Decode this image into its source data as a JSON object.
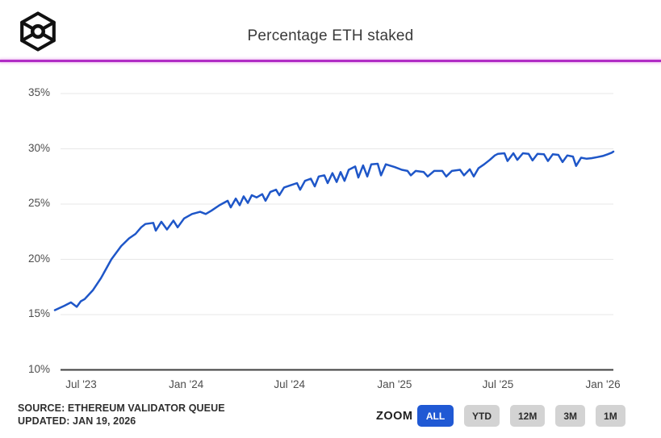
{
  "header": {
    "title": "Percentage ETH staked",
    "logo_icon": "cube-circle-logo",
    "accent_color": "#b02cc5"
  },
  "footer": {
    "source_line1": "SOURCE: ETHEREUM VALIDATOR QUEUE",
    "source_line2": "UPDATED: JAN 19, 2026",
    "zoom_label": "ZOOM",
    "active_color": "#2059d4",
    "inactive_color": "#d3d3d3",
    "zoom_buttons": [
      {
        "label": "ALL",
        "active": true
      },
      {
        "label": "YTD",
        "active": false
      },
      {
        "label": "12M",
        "active": false
      },
      {
        "label": "3M",
        "active": false
      },
      {
        "label": "1M",
        "active": false
      }
    ]
  },
  "chart_data": {
    "type": "line",
    "title": "Percentage ETH staked",
    "series_name": "Percentage ETH staked",
    "line_color": "#1e56c8",
    "grid": true,
    "ylim": [
      10,
      35
    ],
    "xlim": [
      2023.37,
      2026.05
    ],
    "ytick_labels": [
      "35%",
      "30%",
      "25%",
      "20%",
      "15%",
      "10%"
    ],
    "ytick_values": [
      35,
      30,
      25,
      20,
      15,
      10
    ],
    "xtick_labels": [
      "Jul '23",
      "Jan '24",
      "Jul '24",
      "Jan '25",
      "Jul '25",
      "Jan '26"
    ],
    "xtick_values": [
      2023.496,
      2024.0,
      2024.496,
      2025.0,
      2025.496,
      2026.0
    ],
    "points": [
      [
        2023.37,
        15.4
      ],
      [
        2023.416,
        15.8
      ],
      [
        2023.447,
        16.1
      ],
      [
        2023.475,
        15.7
      ],
      [
        2023.494,
        16.2
      ],
      [
        2023.513,
        16.4
      ],
      [
        2023.552,
        17.2
      ],
      [
        2023.591,
        18.3
      ],
      [
        2023.641,
        20.0
      ],
      [
        2023.688,
        21.2
      ],
      [
        2023.726,
        21.9
      ],
      [
        2023.757,
        22.3
      ],
      [
        2023.784,
        22.9
      ],
      [
        2023.804,
        23.2
      ],
      [
        2023.842,
        23.3
      ],
      [
        2023.854,
        22.6
      ],
      [
        2023.881,
        23.4
      ],
      [
        2023.908,
        22.7
      ],
      [
        2023.939,
        23.5
      ],
      [
        2023.959,
        22.9
      ],
      [
        2023.99,
        23.7
      ],
      [
        2024.028,
        24.1
      ],
      [
        2024.067,
        24.3
      ],
      [
        2024.094,
        24.1
      ],
      [
        2024.121,
        24.4
      ],
      [
        2024.16,
        24.9
      ],
      [
        2024.199,
        25.3
      ],
      [
        2024.214,
        24.7
      ],
      [
        2024.238,
        25.5
      ],
      [
        2024.257,
        24.9
      ],
      [
        2024.276,
        25.7
      ],
      [
        2024.296,
        25.1
      ],
      [
        2024.315,
        25.8
      ],
      [
        2024.338,
        25.6
      ],
      [
        2024.365,
        25.9
      ],
      [
        2024.381,
        25.3
      ],
      [
        2024.404,
        26.1
      ],
      [
        2024.431,
        26.3
      ],
      [
        2024.447,
        25.8
      ],
      [
        2024.47,
        26.5
      ],
      [
        2024.501,
        26.7
      ],
      [
        2024.532,
        26.9
      ],
      [
        2024.547,
        26.3
      ],
      [
        2024.57,
        27.1
      ],
      [
        2024.598,
        27.3
      ],
      [
        2024.617,
        26.6
      ],
      [
        2024.636,
        27.5
      ],
      [
        2024.663,
        27.6
      ],
      [
        2024.679,
        26.9
      ],
      [
        2024.702,
        27.8
      ],
      [
        2024.722,
        27.0
      ],
      [
        2024.741,
        27.9
      ],
      [
        2024.76,
        27.1
      ],
      [
        2024.78,
        28.1
      ],
      [
        2024.811,
        28.4
      ],
      [
        2024.826,
        27.4
      ],
      [
        2024.849,
        28.5
      ],
      [
        2024.869,
        27.5
      ],
      [
        2024.888,
        28.6
      ],
      [
        2024.919,
        28.65
      ],
      [
        2024.935,
        27.6
      ],
      [
        2024.958,
        28.6
      ],
      [
        2025.0,
        28.35
      ],
      [
        2025.035,
        28.1
      ],
      [
        2025.062,
        28.0
      ],
      [
        2025.078,
        27.6
      ],
      [
        2025.101,
        28.0
      ],
      [
        2025.14,
        27.9
      ],
      [
        2025.159,
        27.5
      ],
      [
        2025.19,
        28.0
      ],
      [
        2025.229,
        28.0
      ],
      [
        2025.248,
        27.5
      ],
      [
        2025.275,
        28.0
      ],
      [
        2025.314,
        28.1
      ],
      [
        2025.333,
        27.6
      ],
      [
        2025.361,
        28.15
      ],
      [
        2025.38,
        27.5
      ],
      [
        2025.403,
        28.25
      ],
      [
        2025.43,
        28.6
      ],
      [
        2025.457,
        29.0
      ],
      [
        2025.481,
        29.4
      ],
      [
        2025.496,
        29.55
      ],
      [
        2025.527,
        29.6
      ],
      [
        2025.542,
        28.9
      ],
      [
        2025.57,
        29.6
      ],
      [
        2025.589,
        29.0
      ],
      [
        2025.616,
        29.6
      ],
      [
        2025.643,
        29.55
      ],
      [
        2025.662,
        28.95
      ],
      [
        2025.686,
        29.55
      ],
      [
        2025.717,
        29.5
      ],
      [
        2025.736,
        28.9
      ],
      [
        2025.759,
        29.5
      ],
      [
        2025.786,
        29.45
      ],
      [
        2025.806,
        28.8
      ],
      [
        2025.829,
        29.4
      ],
      [
        2025.856,
        29.3
      ],
      [
        2025.871,
        28.45
      ],
      [
        2025.895,
        29.2
      ],
      [
        2025.922,
        29.1
      ],
      [
        2025.945,
        29.15
      ],
      [
        2025.972,
        29.25
      ],
      [
        2025.999,
        29.35
      ],
      [
        2026.022,
        29.5
      ],
      [
        2026.042,
        29.65
      ],
      [
        2026.05,
        29.75
      ]
    ]
  }
}
